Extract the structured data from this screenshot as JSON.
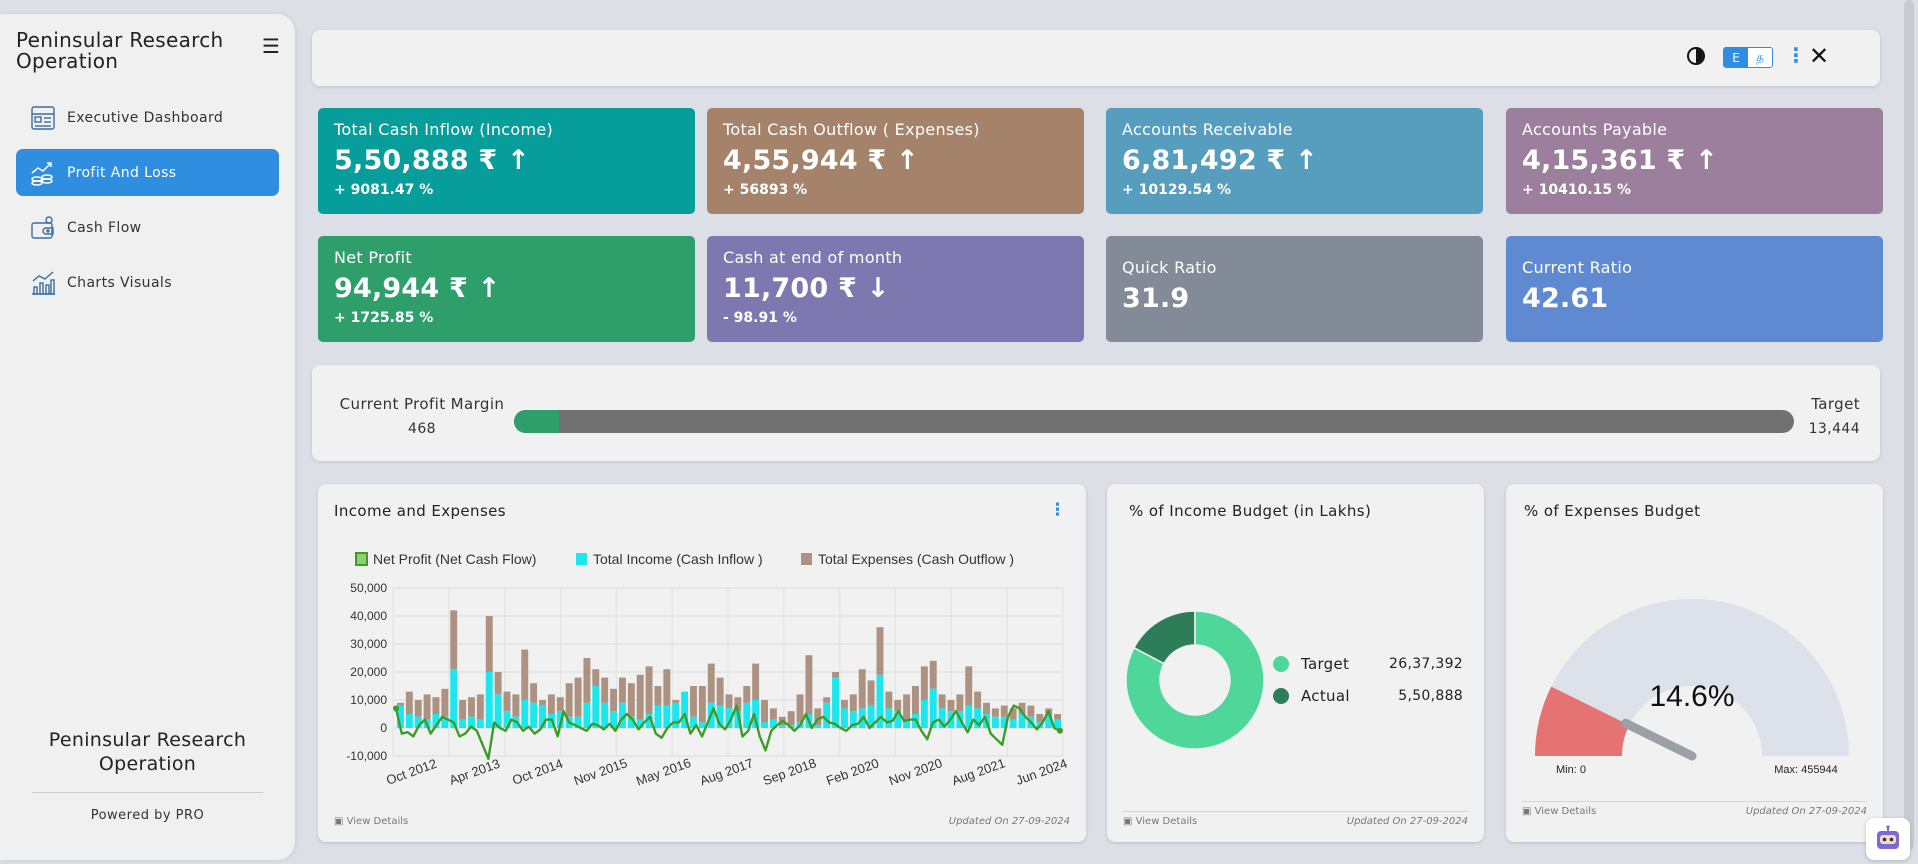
{
  "sidebar": {
    "brand": "Peninsular Research Operation",
    "nav": [
      {
        "label": "Executive Dashboard",
        "icon": "dashboard-icon"
      },
      {
        "label": "Profit And Loss",
        "icon": "profit-loss-icon",
        "active": true
      },
      {
        "label": "Cash Flow",
        "icon": "wallet-icon"
      },
      {
        "label": "Charts Visuals",
        "icon": "bar-chart-icon"
      }
    ],
    "footer_title": "Peninsular Research Operation",
    "powered_by": "Powered by PRO"
  },
  "topbar": {
    "lang_e": "E",
    "lang_t": "த"
  },
  "kpis": [
    {
      "label": "Total Cash Inflow (Income)",
      "value": "5,50,888 ₹ ↑",
      "pct": "+ 9081.47 %",
      "color": "#069d9b"
    },
    {
      "label": "Total Cash Outflow ( Expenses)",
      "value": "4,55,944 ₹ ↑",
      "pct": "+ 56893 %",
      "color": "#a5826a"
    },
    {
      "label": "Accounts Receivable",
      "value": "6,81,492 ₹ ↑",
      "pct": "+ 10129.54 %",
      "color": "#579dbe"
    },
    {
      "label": "Accounts Payable",
      "value": "4,15,361 ₹ ↑",
      "pct": "+ 10410.15 %",
      "color": "#9b7f9c"
    },
    {
      "label": "Net Profit",
      "value": "94,944 ₹ ↑",
      "pct": "+ 1725.85 %",
      "color": "#2e9f6a"
    },
    {
      "label": "Cash at end of month",
      "value": "11,700 ₹ ↓",
      "pct": "- 98.91 %",
      "color": "#7d79b0"
    },
    {
      "label": "Quick Ratio",
      "value": "31.9",
      "color": "#838a98"
    },
    {
      "label": "Current Ratio",
      "value": "42.61",
      "color": "#5f8ad2"
    }
  ],
  "profit_margin": {
    "label": "Current Profit Margin",
    "value": "468",
    "target_label": "Target",
    "target_value": "13,444",
    "fraction": 0.0348
  },
  "income_expenses": {
    "title": "Income and Expenses",
    "view_details": "View Details",
    "updated": "Updated On 27-09-2024"
  },
  "income_budget": {
    "title": "% of Income Budget (in Lakhs)",
    "view_details": "View Details",
    "updated": "Updated On 27-09-2024",
    "legend": [
      {
        "name": "Target",
        "value": "26,37,392",
        "color": "#4fd699"
      },
      {
        "name": "Actual",
        "value": "5,50,888",
        "color": "#2d7d59"
      }
    ]
  },
  "expenses_budget": {
    "title": "% of Expenses Budget",
    "view_details": "View Details",
    "updated": "Updated On 27-09-2024",
    "min_label": "Min: 0",
    "max_label": "Max: 455944"
  },
  "chart_data": [
    {
      "type": "bar",
      "series": [
        {
          "name": "Net Profit (Net Cash Flow)",
          "kind": "line",
          "color": "#3f9a2a",
          "values": [
            7000,
            -2000,
            -1500,
            -3000,
            1000,
            3000,
            -2000,
            1000,
            4000,
            3000,
            2000,
            -3000,
            -2000,
            500,
            -1000,
            -6000,
            -11000,
            2000,
            0,
            -1000,
            3000,
            2000,
            -1000,
            500,
            -2000,
            -500,
            3000,
            3000,
            -3000,
            6000,
            2000,
            1000,
            0,
            -1000,
            1500,
            1000,
            -500,
            1500,
            -1000,
            3000,
            5000,
            3000,
            -500,
            2000,
            4000,
            -2000,
            -3500,
            0,
            2000,
            2000,
            5000,
            -2000,
            1000,
            -3000,
            2000,
            7000,
            1500,
            -500,
            3000,
            8000,
            -3000,
            -1000,
            5000,
            -3000,
            -8000,
            -1000,
            1000,
            2500,
            1000,
            -1000,
            1000,
            5000,
            0,
            3000,
            4000,
            2000,
            1500,
            0,
            -1000,
            1000,
            1500,
            4000,
            0,
            2000,
            4000,
            2000,
            2500,
            6000,
            2500,
            3000,
            3000,
            -1000,
            -4000,
            2000,
            3000,
            500,
            3000,
            6000,
            2000,
            -1500,
            3000,
            1000,
            4000,
            -2000,
            -4000,
            -6000,
            4000,
            8000,
            7000,
            4000,
            2000,
            -500,
            2000,
            6000,
            0,
            -1000
          ]
        },
        {
          "name": "Total Income (Cash Inflow )",
          "kind": "bar",
          "color": "#1ee6ee",
          "values": [
            8000,
            5000,
            4000,
            3000,
            5000,
            4000,
            21000,
            3000,
            4000,
            3000,
            20000,
            12000,
            6000,
            4000,
            10000,
            9000,
            8000,
            5000,
            6000,
            4000,
            4000,
            9000,
            15000,
            9000,
            6000,
            9000,
            4000,
            3000,
            5000,
            8000,
            8000,
            9000,
            13000,
            4000,
            2000,
            9000,
            8000,
            7000,
            6000,
            9000,
            10000,
            2000,
            3000,
            1000,
            1000,
            2000,
            5000,
            1000,
            9000,
            18000,
            7000,
            6000,
            7000,
            8000,
            19000,
            7000,
            6000,
            3000,
            5000,
            10000,
            14000,
            7000,
            6000,
            6000,
            8000,
            7000,
            5000,
            4000,
            4000,
            3000,
            5000,
            4000,
            2000,
            5000,
            3000
          ]
        },
        {
          "name": "Total Expenses (Cash Outflow )",
          "kind": "bar",
          "color": "#ad9282",
          "values": [
            9000,
            13000,
            10000,
            12000,
            11000,
            14000,
            42000,
            10000,
            11000,
            12000,
            40000,
            20000,
            13000,
            12000,
            28000,
            16000,
            10000,
            12000,
            11000,
            16000,
            18000,
            25000,
            21000,
            18000,
            14000,
            18000,
            16000,
            19000,
            22000,
            15000,
            21000,
            10000,
            12000,
            15000,
            15000,
            23000,
            18000,
            12000,
            11000,
            15000,
            23000,
            10000,
            7000,
            4000,
            6000,
            12000,
            26000,
            7000,
            11000,
            20000,
            10000,
            12000,
            21000,
            17000,
            36000,
            13000,
            10000,
            12000,
            15000,
            22000,
            24000,
            12000,
            10000,
            12000,
            22000,
            13000,
            9000,
            7000,
            8000,
            7000,
            9000,
            8000,
            5000,
            7000,
            5000
          ]
        }
      ],
      "x_tick_labels": [
        "Oct 2012",
        "Apr 2013",
        "Oct 2014",
        "Nov 2015",
        "May 2016",
        "Aug 2017",
        "Sep 2018",
        "Feb 2020",
        "Nov 2020",
        "Aug 2021",
        "Jun 2024"
      ],
      "y_ticks": [
        "50,000",
        "40,000",
        "30,000",
        "20,000",
        "10,000",
        "0",
        "-10,000"
      ],
      "ylim": [
        -10000,
        50000
      ],
      "grid": true,
      "legend": "top"
    },
    {
      "type": "pie",
      "variant": "donut",
      "slices": [
        {
          "name": "Target",
          "value": 2637392
        },
        {
          "name": "Actual",
          "value": 550888
        }
      ]
    },
    {
      "type": "gauge",
      "value_label": "14.6%",
      "fraction": 0.146,
      "min": 0,
      "max": 455944,
      "colors": {
        "filled": "#e57371",
        "track": "#dde1e9",
        "needle": "#9aa0a6"
      }
    }
  ]
}
